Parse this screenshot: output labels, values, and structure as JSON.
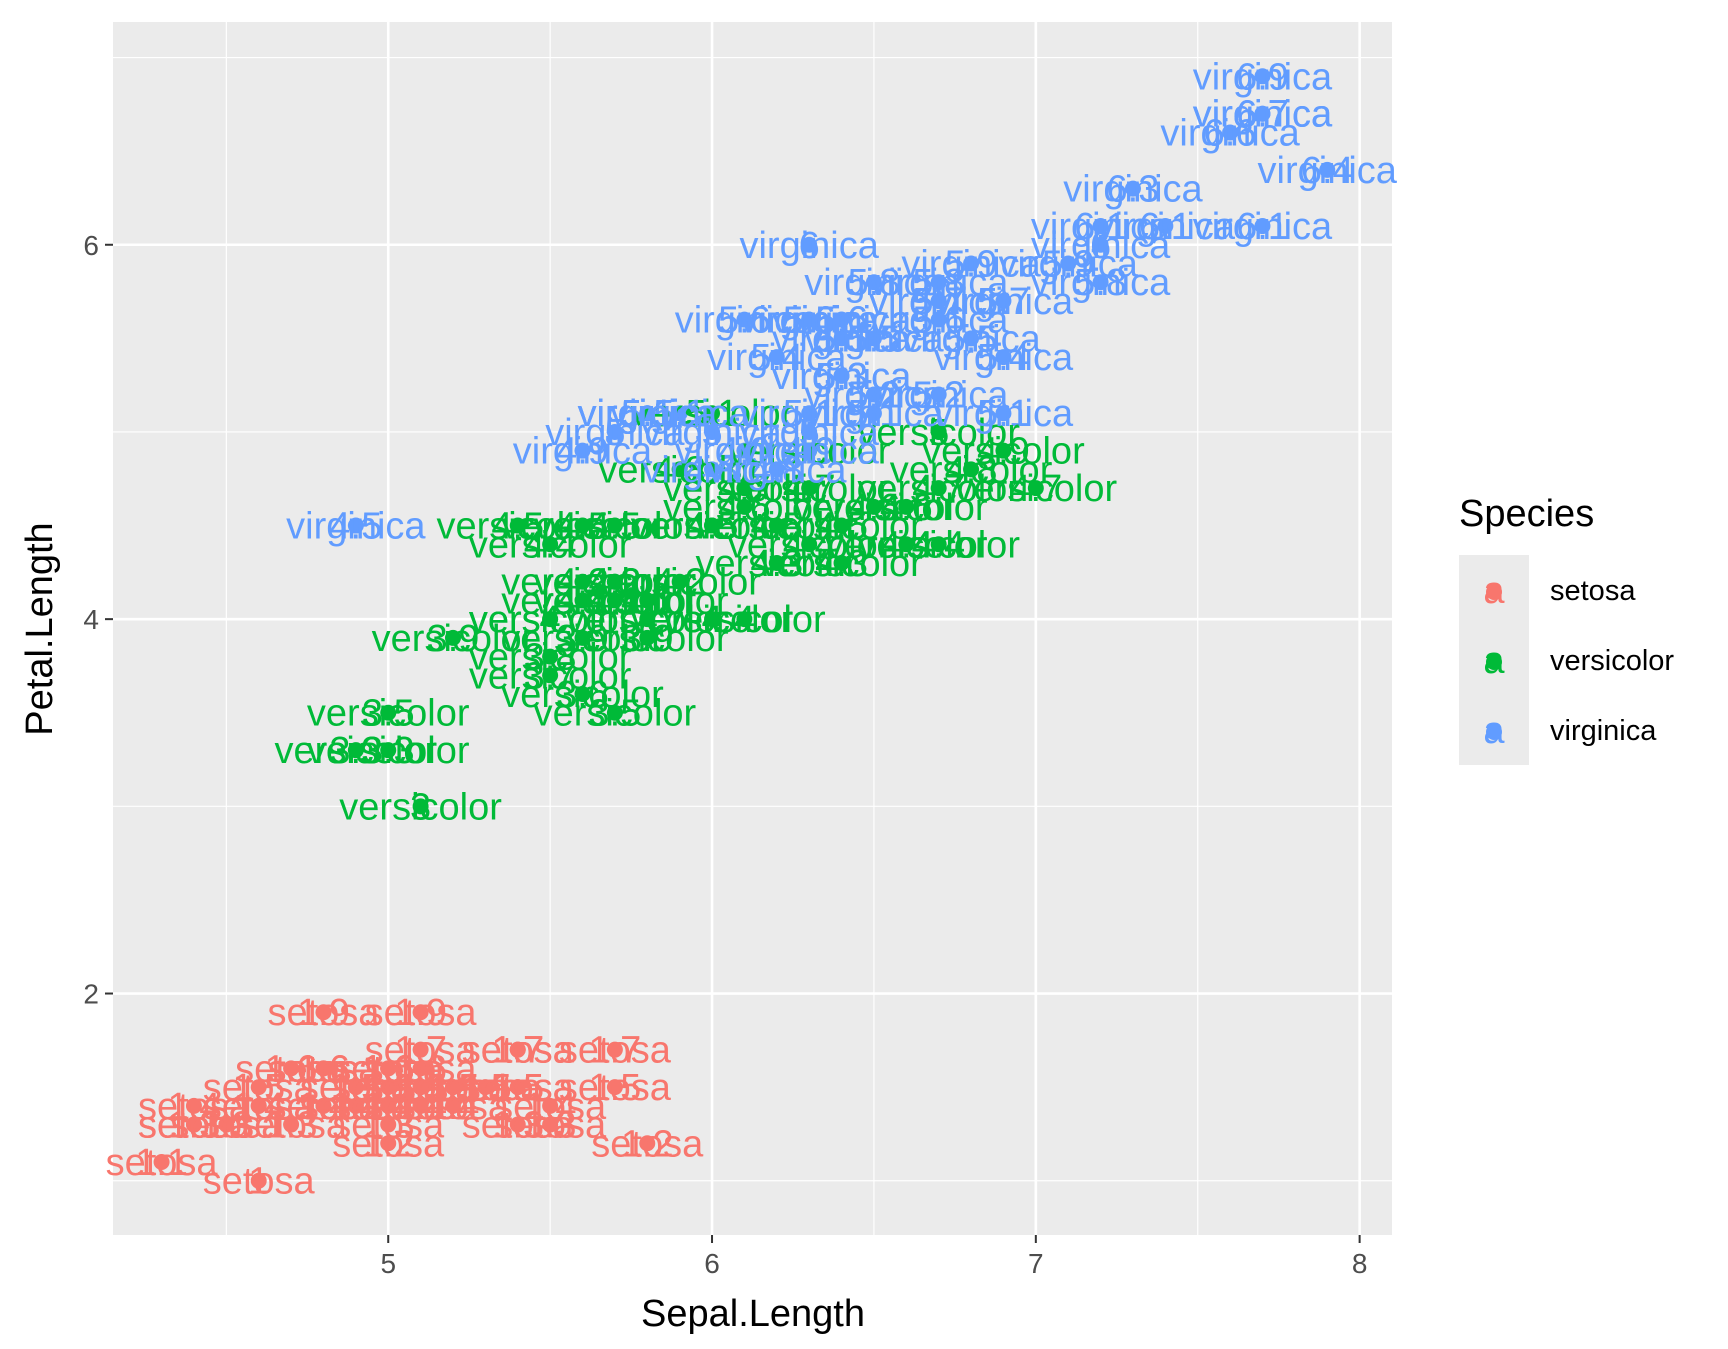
{
  "chart_data": {
    "type": "scatter",
    "xlabel": "Sepal.Length",
    "ylabel": "Petal.Length",
    "xlim": [
      4.15,
      8.1
    ],
    "ylim": [
      0.71,
      7.19
    ],
    "x_ticks": [
      5,
      6,
      7,
      8
    ],
    "y_ticks": [
      2,
      4,
      6
    ],
    "grid": true,
    "legend": {
      "title": "Species",
      "placement": "right",
      "key_glyph": "a"
    },
    "colors": {
      "setosa": "#F8766D",
      "versicolor": "#00BA38",
      "virginica": "#619CFF",
      "panel_background": "#EBEBEB",
      "grid": "#FFFFFF"
    },
    "series": [
      {
        "name": "setosa",
        "x": [
          5.1,
          4.9,
          4.7,
          4.6,
          5.0,
          5.4,
          4.6,
          5.0,
          4.4,
          4.9,
          5.4,
          4.8,
          4.8,
          4.3,
          5.8,
          5.7,
          5.4,
          5.1,
          5.7,
          5.1,
          5.4,
          5.1,
          4.6,
          5.1,
          4.8,
          5.0,
          5.0,
          5.2,
          5.2,
          4.7,
          4.8,
          5.4,
          5.2,
          5.5,
          4.9,
          5.0,
          5.5,
          4.9,
          4.4,
          5.1,
          5.0,
          4.5,
          4.4,
          5.0,
          5.1,
          4.8,
          5.1,
          4.6,
          5.3,
          5.0
        ],
        "y": [
          1.4,
          1.4,
          1.3,
          1.5,
          1.4,
          1.7,
          1.4,
          1.5,
          1.4,
          1.5,
          1.5,
          1.6,
          1.4,
          1.1,
          1.2,
          1.5,
          1.3,
          1.4,
          1.7,
          1.5,
          1.7,
          1.5,
          1.0,
          1.7,
          1.9,
          1.6,
          1.6,
          1.5,
          1.4,
          1.6,
          1.6,
          1.5,
          1.5,
          1.4,
          1.5,
          1.2,
          1.3,
          1.4,
          1.3,
          1.5,
          1.3,
          1.3,
          1.3,
          1.6,
          1.9,
          1.4,
          1.6,
          1.4,
          1.5,
          1.4
        ]
      },
      {
        "name": "versicolor",
        "x": [
          7.0,
          6.4,
          6.9,
          5.5,
          6.5,
          5.7,
          6.3,
          4.9,
          6.6,
          5.2,
          5.0,
          5.9,
          6.0,
          6.1,
          5.6,
          6.7,
          5.6,
          5.8,
          6.2,
          5.6,
          5.9,
          6.1,
          6.3,
          6.1,
          6.4,
          6.6,
          6.8,
          6.7,
          6.0,
          5.7,
          5.5,
          5.5,
          5.8,
          6.0,
          5.4,
          6.0,
          6.7,
          6.3,
          5.6,
          5.5,
          5.5,
          6.1,
          5.8,
          5.0,
          5.6,
          5.7,
          5.7,
          6.2,
          5.1,
          5.7
        ],
        "y": [
          4.7,
          4.5,
          4.9,
          4.0,
          4.6,
          4.5,
          4.7,
          3.3,
          4.6,
          3.9,
          3.5,
          4.2,
          4.0,
          4.7,
          3.6,
          4.4,
          4.5,
          4.1,
          4.5,
          3.9,
          4.8,
          4.0,
          4.9,
          4.7,
          4.3,
          4.4,
          4.8,
          5.0,
          4.5,
          3.5,
          3.8,
          3.7,
          3.9,
          5.1,
          4.5,
          4.5,
          4.7,
          4.4,
          4.1,
          4.0,
          4.4,
          4.6,
          4.0,
          3.3,
          4.2,
          4.2,
          4.2,
          4.3,
          3.0,
          4.1
        ]
      },
      {
        "name": "virginica",
        "x": [
          6.3,
          5.8,
          7.1,
          6.3,
          6.5,
          7.6,
          4.9,
          7.3,
          6.7,
          7.2,
          6.5,
          6.4,
          6.8,
          5.7,
          5.8,
          6.4,
          6.5,
          7.7,
          7.7,
          6.0,
          6.9,
          5.6,
          7.7,
          6.3,
          6.7,
          7.2,
          6.2,
          6.1,
          6.4,
          7.2,
          7.4,
          7.9,
          6.4,
          6.3,
          6.1,
          7.7,
          6.3,
          6.4,
          6.0,
          6.9,
          6.7,
          6.9,
          5.8,
          6.8,
          6.7,
          6.7,
          6.3,
          6.5,
          6.2,
          5.9
        ],
        "y": [
          6.0,
          5.1,
          5.9,
          5.6,
          5.8,
          6.6,
          4.5,
          6.3,
          5.8,
          6.1,
          5.1,
          5.3,
          5.5,
          5.0,
          5.1,
          5.3,
          5.5,
          6.7,
          6.9,
          5.0,
          5.7,
          4.9,
          6.7,
          4.9,
          5.7,
          6.0,
          4.8,
          4.9,
          5.6,
          5.8,
          6.1,
          6.4,
          5.6,
          5.1,
          5.6,
          6.1,
          5.6,
          5.5,
          4.8,
          5.4,
          5.6,
          5.1,
          5.1,
          5.9,
          5.7,
          5.2,
          5.0,
          5.2,
          5.4,
          5.1
        ]
      }
    ]
  }
}
